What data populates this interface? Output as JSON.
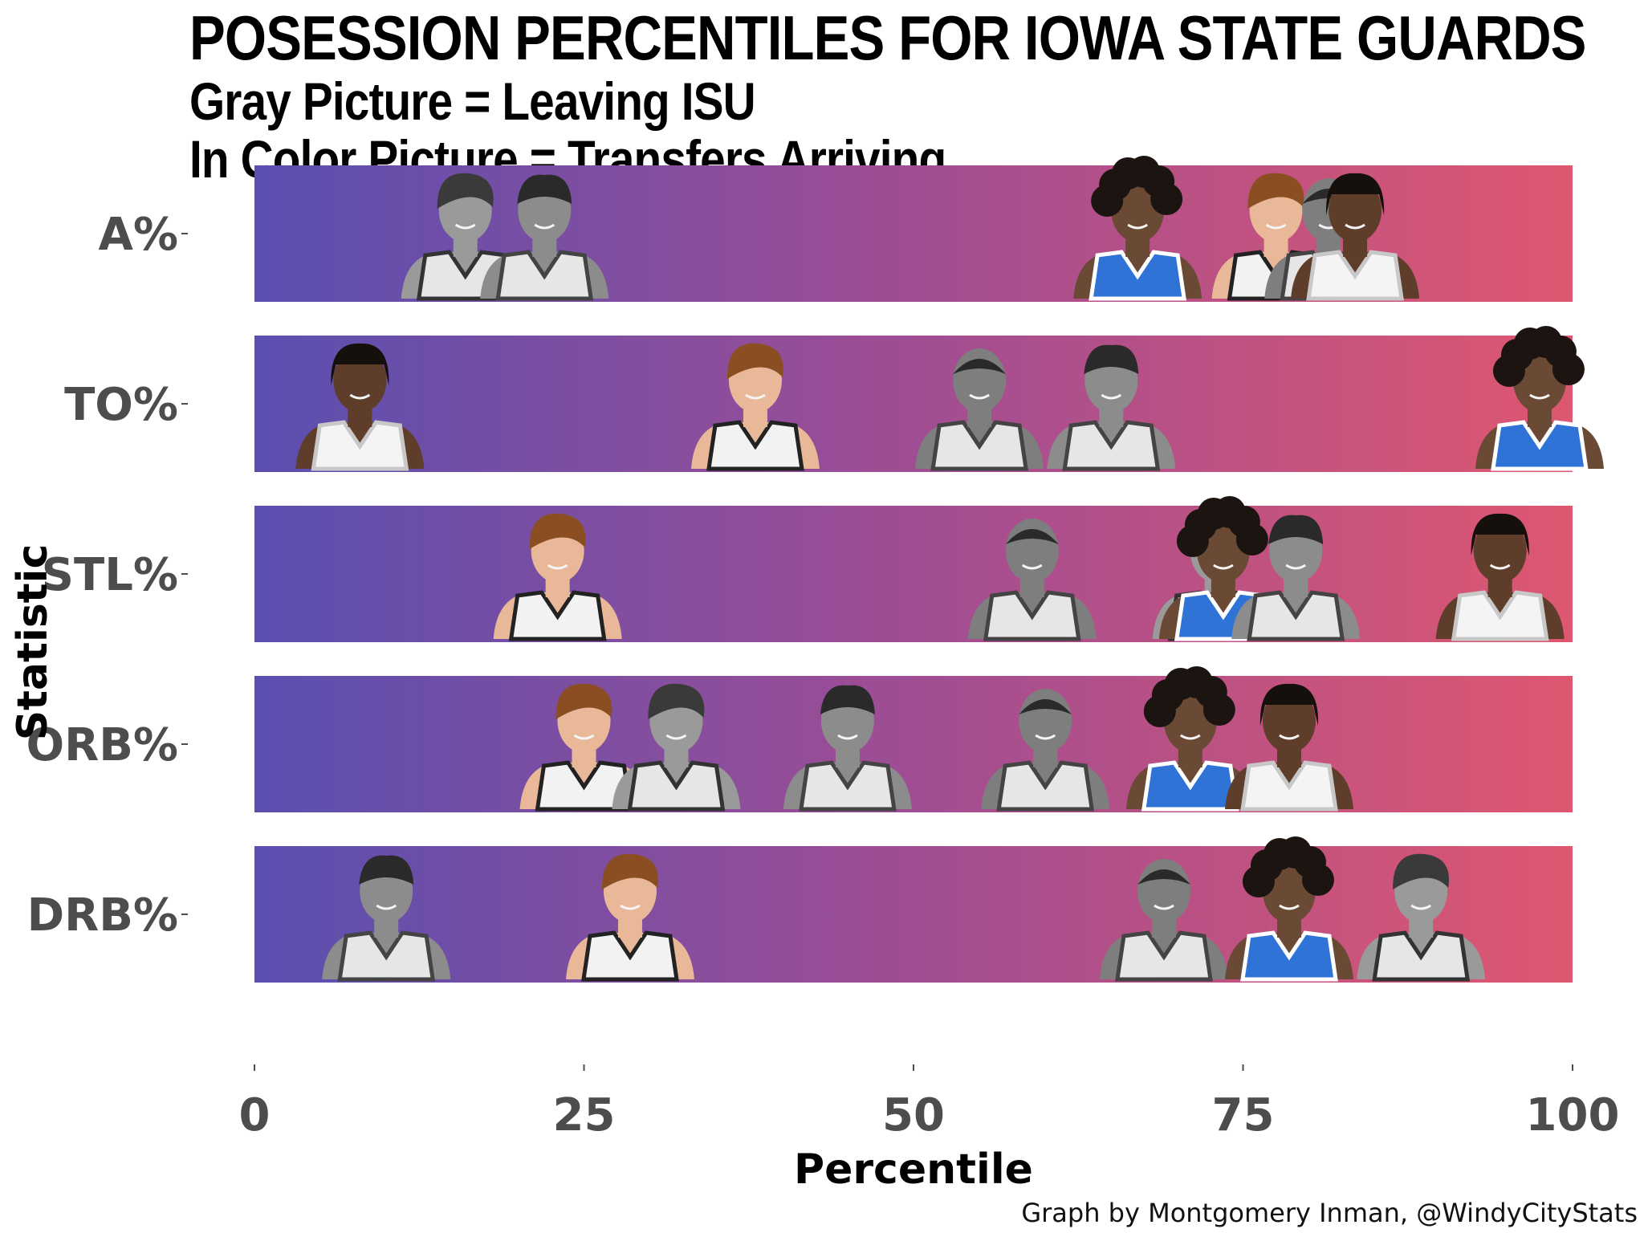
{
  "header": {
    "title": "POSESSION PERCENTILES FOR IOWA STATE GUARDS",
    "subtitle_1": "Gray Picture = Leaving ISU",
    "subtitle_2": "In Color Picture = Transfers Arriving"
  },
  "credit": "Graph by Montgomery Inman, @WindyCityStats",
  "colors": {
    "gradient_start": "#5a4fb0",
    "gradient_mid": "#a04d93",
    "gradient_end": "#de5770",
    "leaving_jersey": "#e6e6e6",
    "leaving_skin": "#9a9a9a",
    "leaving_hair": "#3a3a3a",
    "arriving_jersey_blue": "#2f73d6",
    "arriving_jersey_white": "#f4f4f4",
    "arriving_skin_dark": "#6b4a35",
    "arriving_skin_light": "#e8b898",
    "arriving_hair_dark": "#1c1410",
    "arriving_hair_auburn": "#8a4e22",
    "tick_text": "#4d4d4d"
  },
  "chart_data": {
    "type": "scatter",
    "title": "POSESSION PERCENTILES FOR IOWA STATE GUARDS",
    "xlabel": "Percentile",
    "ylabel": "Statistic",
    "xlim": [
      0,
      100
    ],
    "xticks": [
      0,
      25,
      50,
      75,
      100
    ],
    "categories": [
      "A%",
      "TO%",
      "STL%",
      "ORB%",
      "DRB%"
    ],
    "grid": false,
    "markers": "player headshot pictures",
    "points": [
      {
        "category": "A%",
        "x": 16,
        "status": "leaving",
        "look": "gray_a"
      },
      {
        "category": "A%",
        "x": 22,
        "status": "leaving",
        "look": "gray_b"
      },
      {
        "category": "A%",
        "x": 67,
        "status": "arriving",
        "look": "blue_curly"
      },
      {
        "category": "A%",
        "x": 77.5,
        "status": "leaving",
        "look": "gray_young"
      },
      {
        "category": "A%",
        "x": 81.5,
        "status": "leaving",
        "look": "gray_c"
      },
      {
        "category": "A%",
        "x": 83.5,
        "status": "arriving",
        "look": "white_braids"
      },
      {
        "category": "TO%",
        "x": 8,
        "status": "arriving",
        "look": "white_braids"
      },
      {
        "category": "TO%",
        "x": 38,
        "status": "leaving",
        "look": "gray_young"
      },
      {
        "category": "TO%",
        "x": 55,
        "status": "leaving",
        "look": "gray_c"
      },
      {
        "category": "TO%",
        "x": 65,
        "status": "leaving",
        "look": "gray_b"
      },
      {
        "category": "TO%",
        "x": 97.5,
        "status": "arriving",
        "look": "blue_curly"
      },
      {
        "category": "STL%",
        "x": 23,
        "status": "leaving",
        "look": "gray_young"
      },
      {
        "category": "STL%",
        "x": 59,
        "status": "leaving",
        "look": "gray_c"
      },
      {
        "category": "STL%",
        "x": 73,
        "status": "leaving",
        "look": "gray_a"
      },
      {
        "category": "STL%",
        "x": 73.5,
        "status": "arriving",
        "look": "blue_curly"
      },
      {
        "category": "STL%",
        "x": 79,
        "status": "leaving",
        "look": "gray_b"
      },
      {
        "category": "STL%",
        "x": 94.5,
        "status": "arriving",
        "look": "white_braids"
      },
      {
        "category": "ORB%",
        "x": 25,
        "status": "leaving",
        "look": "gray_young"
      },
      {
        "category": "ORB%",
        "x": 32,
        "status": "leaving",
        "look": "gray_a"
      },
      {
        "category": "ORB%",
        "x": 45,
        "status": "leaving",
        "look": "gray_b"
      },
      {
        "category": "ORB%",
        "x": 60,
        "status": "leaving",
        "look": "gray_c"
      },
      {
        "category": "ORB%",
        "x": 71,
        "status": "arriving",
        "look": "blue_curly"
      },
      {
        "category": "ORB%",
        "x": 78.5,
        "status": "arriving",
        "look": "white_braids"
      },
      {
        "category": "DRB%",
        "x": 10,
        "status": "leaving",
        "look": "gray_b"
      },
      {
        "category": "DRB%",
        "x": 28.5,
        "status": "leaving",
        "look": "gray_young"
      },
      {
        "category": "DRB%",
        "x": 69,
        "status": "leaving",
        "look": "gray_c"
      },
      {
        "category": "DRB%",
        "x": 78.5,
        "status": "arriving",
        "look": "blue_curly"
      },
      {
        "category": "DRB%",
        "x": 88.5,
        "status": "leaving",
        "look": "gray_a"
      }
    ]
  }
}
